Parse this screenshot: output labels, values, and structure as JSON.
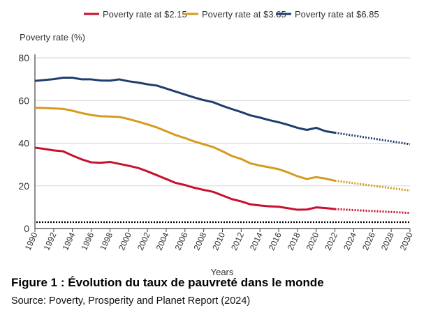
{
  "chart_data": {
    "type": "line",
    "title": "",
    "ylabel": "Poverty rate (%)",
    "xlabel": "Years",
    "xlim": [
      1990,
      2030
    ],
    "ylim": [
      0,
      80
    ],
    "yticks": [
      0,
      20,
      40,
      60,
      80
    ],
    "xticks": [
      1990,
      1992,
      1994,
      1996,
      1998,
      2000,
      2002,
      2004,
      2006,
      2008,
      2010,
      2012,
      2014,
      2016,
      2018,
      2020,
      2022,
      2024,
      2026,
      2028,
      2030
    ],
    "grid": "horizontal",
    "legend_position": "top",
    "x": [
      1990,
      1991,
      1992,
      1993,
      1994,
      1995,
      1996,
      1997,
      1998,
      1999,
      2000,
      2001,
      2002,
      2003,
      2004,
      2005,
      2006,
      2007,
      2008,
      2009,
      2010,
      2011,
      2012,
      2013,
      2014,
      2015,
      2016,
      2017,
      2018,
      2019,
      2020,
      2021,
      2022
    ],
    "projection_x": [
      2022,
      2030
    ],
    "series": [
      {
        "name": "Poverty rate at $2.15",
        "color": "#c8102e",
        "values": [
          37.9,
          37.3,
          36.6,
          36.2,
          34.2,
          32.4,
          31.0,
          30.8,
          31.2,
          30.3,
          29.4,
          28.4,
          26.8,
          25.0,
          23.2,
          21.4,
          20.4,
          19.1,
          18.1,
          17.2,
          15.5,
          13.8,
          12.7,
          11.3,
          10.8,
          10.4,
          10.2,
          9.5,
          8.8,
          8.9,
          9.9,
          9.6,
          9.1
        ],
        "projection": [
          9.1,
          7.3
        ]
      },
      {
        "name": "Poverty rate at $3.65",
        "color": "#d69a1e",
        "values": [
          56.6,
          56.5,
          56.3,
          56.1,
          55.2,
          54.1,
          53.2,
          52.6,
          52.5,
          52.3,
          51.3,
          50.1,
          48.8,
          47.4,
          45.6,
          43.8,
          42.4,
          40.8,
          39.5,
          38.2,
          36.2,
          34.0,
          32.6,
          30.5,
          29.5,
          28.7,
          27.8,
          26.3,
          24.5,
          23.2,
          24.1,
          23.4,
          22.4
        ],
        "projection": [
          22.4,
          17.8
        ]
      },
      {
        "name": "Poverty rate at $6.85",
        "color": "#1f3d6e",
        "values": [
          69.2,
          69.6,
          70.0,
          70.7,
          70.7,
          69.9,
          69.9,
          69.4,
          69.3,
          69.9,
          69.0,
          68.4,
          67.6,
          67.0,
          65.6,
          64.2,
          62.8,
          61.4,
          60.2,
          59.2,
          57.5,
          56.0,
          54.6,
          53.0,
          52.0,
          50.8,
          49.8,
          48.6,
          47.2,
          46.2,
          47.2,
          45.6,
          44.9
        ],
        "projection": [
          44.9,
          39.5
        ]
      }
    ],
    "reference_line": {
      "value": 3,
      "color": "#000000",
      "style": "dotted"
    }
  },
  "caption": {
    "title": "Figure 1 : Évolution du taux de pauvreté dans le monde",
    "source": "Source: Poverty, Prosperity and Planet Report (2024)"
  }
}
